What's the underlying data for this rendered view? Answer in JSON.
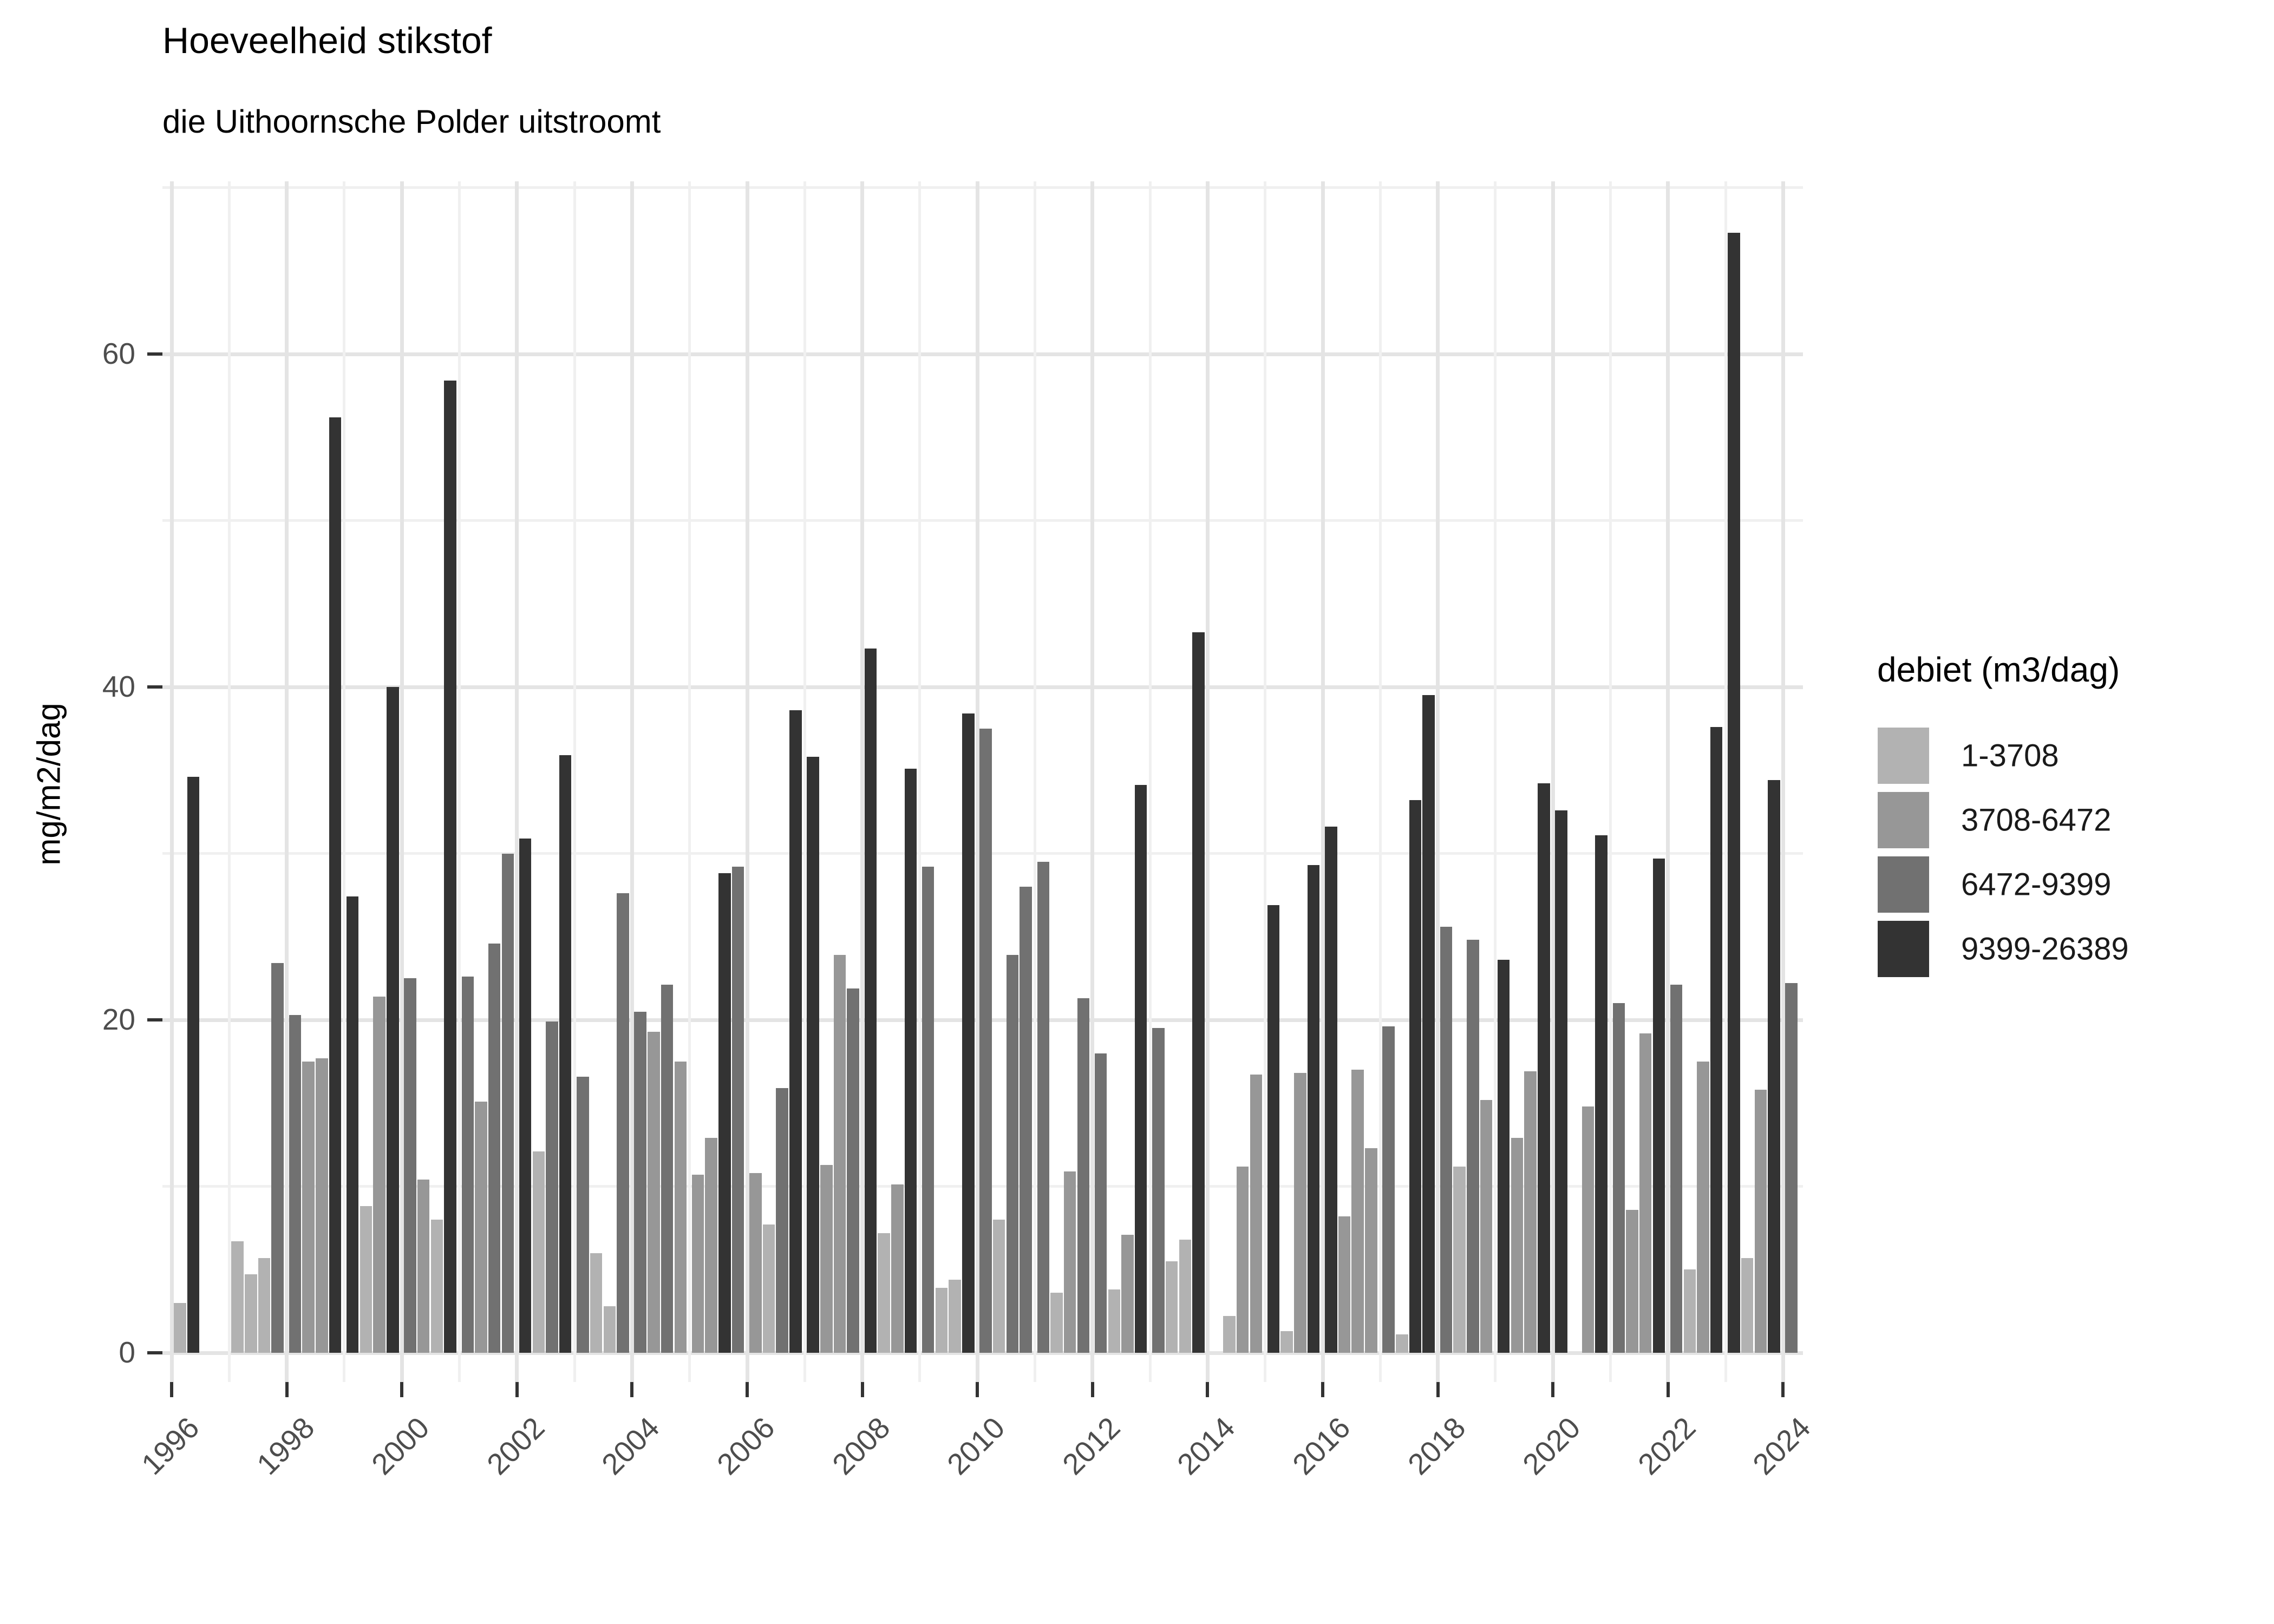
{
  "chart_data": {
    "type": "bar",
    "title": "Hoeveelheid stikstof",
    "subtitle": "die Uithoornsche Polder uitstroomt",
    "ylabel": "mg/m2/dag",
    "xlabel": "",
    "grid": "on",
    "legend_position": "right",
    "legend_title": "debiet (m3/dag)",
    "categories": [
      {
        "label": "1-3708",
        "color": "#b2b2b2"
      },
      {
        "label": "3708-6472",
        "color": "#979797"
      },
      {
        "label": "6472-9399",
        "color": "#717171"
      },
      {
        "label": "9399-26389",
        "color": "#333333"
      }
    ],
    "ylim": [
      -1.8,
      70.4
    ],
    "yticks": [
      0,
      20,
      40,
      60
    ],
    "yticks_minor": [
      10,
      30,
      50,
      70
    ],
    "xticks": [
      1996,
      1998,
      2000,
      2002,
      2004,
      2006,
      2008,
      2010,
      2012,
      2014,
      2016,
      2018,
      2020,
      2022,
      2024
    ],
    "xrange": [
      1996,
      2024
    ],
    "bars": [
      {
        "year": 1996,
        "q": 1,
        "c": 0,
        "v": 3.0
      },
      {
        "year": 1996,
        "q": 2,
        "c": 3,
        "v": 34.6
      },
      {
        "year": 1997,
        "q": 1,
        "c": 0,
        "v": 6.7
      },
      {
        "year": 1997,
        "q": 2,
        "c": 0,
        "v": 4.7
      },
      {
        "year": 1997,
        "q": 3,
        "c": 0,
        "v": 5.7
      },
      {
        "year": 1997,
        "q": 4,
        "c": 2,
        "v": 23.4
      },
      {
        "year": 1998,
        "q": 1,
        "c": 2,
        "v": 20.3
      },
      {
        "year": 1998,
        "q": 2,
        "c": 1,
        "v": 17.5
      },
      {
        "year": 1998,
        "q": 3,
        "c": 1,
        "v": 17.7
      },
      {
        "year": 1998,
        "q": 4,
        "c": 3,
        "v": 56.2
      },
      {
        "year": 1999,
        "q": 1,
        "c": 3,
        "v": 27.4
      },
      {
        "year": 1999,
        "q": 2,
        "c": 0,
        "v": 8.8
      },
      {
        "year": 1999,
        "q": 3,
        "c": 1,
        "v": 21.4
      },
      {
        "year": 1999,
        "q": 4,
        "c": 3,
        "v": 40.0
      },
      {
        "year": 2000,
        "q": 1,
        "c": 2,
        "v": 22.5
      },
      {
        "year": 2000,
        "q": 2,
        "c": 1,
        "v": 10.4
      },
      {
        "year": 2000,
        "q": 3,
        "c": 0,
        "v": 8.0
      },
      {
        "year": 2000,
        "q": 4,
        "c": 3,
        "v": 58.4
      },
      {
        "year": 2001,
        "q": 1,
        "c": 2,
        "v": 22.6
      },
      {
        "year": 2001,
        "q": 2,
        "c": 1,
        "v": 15.1
      },
      {
        "year": 2001,
        "q": 3,
        "c": 2,
        "v": 24.6
      },
      {
        "year": 2001,
        "q": 4,
        "c": 2,
        "v": 30.0
      },
      {
        "year": 2002,
        "q": 1,
        "c": 3,
        "v": 30.9
      },
      {
        "year": 2002,
        "q": 2,
        "c": 0,
        "v": 12.1
      },
      {
        "year": 2002,
        "q": 3,
        "c": 2,
        "v": 19.9
      },
      {
        "year": 2002,
        "q": 4,
        "c": 3,
        "v": 35.9
      },
      {
        "year": 2003,
        "q": 1,
        "c": 2,
        "v": 16.6
      },
      {
        "year": 2003,
        "q": 2,
        "c": 0,
        "v": 6.0
      },
      {
        "year": 2003,
        "q": 3,
        "c": 0,
        "v": 2.8
      },
      {
        "year": 2003,
        "q": 4,
        "c": 2,
        "v": 27.6
      },
      {
        "year": 2004,
        "q": 1,
        "c": 2,
        "v": 20.5
      },
      {
        "year": 2004,
        "q": 2,
        "c": 1,
        "v": 19.3
      },
      {
        "year": 2004,
        "q": 3,
        "c": 2,
        "v": 22.1
      },
      {
        "year": 2004,
        "q": 4,
        "c": 1,
        "v": 17.5
      },
      {
        "year": 2005,
        "q": 1,
        "c": 1,
        "v": 10.7
      },
      {
        "year": 2005,
        "q": 2,
        "c": 1,
        "v": 12.9
      },
      {
        "year": 2005,
        "q": 3,
        "c": 3,
        "v": 28.8
      },
      {
        "year": 2005,
        "q": 4,
        "c": 2,
        "v": 29.2
      },
      {
        "year": 2006,
        "q": 1,
        "c": 1,
        "v": 10.8
      },
      {
        "year": 2006,
        "q": 2,
        "c": 0,
        "v": 7.7
      },
      {
        "year": 2006,
        "q": 3,
        "c": 2,
        "v": 15.9
      },
      {
        "year": 2006,
        "q": 4,
        "c": 3,
        "v": 38.6
      },
      {
        "year": 2007,
        "q": 1,
        "c": 3,
        "v": 35.8
      },
      {
        "year": 2007,
        "q": 2,
        "c": 1,
        "v": 11.3
      },
      {
        "year": 2007,
        "q": 3,
        "c": 1,
        "v": 23.9
      },
      {
        "year": 2007,
        "q": 4,
        "c": 2,
        "v": 21.9
      },
      {
        "year": 2008,
        "q": 1,
        "c": 3,
        "v": 42.3
      },
      {
        "year": 2008,
        "q": 2,
        "c": 0,
        "v": 7.2
      },
      {
        "year": 2008,
        "q": 3,
        "c": 1,
        "v": 10.1
      },
      {
        "year": 2008,
        "q": 4,
        "c": 3,
        "v": 35.1
      },
      {
        "year": 2009,
        "q": 1,
        "c": 2,
        "v": 29.2
      },
      {
        "year": 2009,
        "q": 2,
        "c": 0,
        "v": 3.9
      },
      {
        "year": 2009,
        "q": 3,
        "c": 0,
        "v": 4.4
      },
      {
        "year": 2009,
        "q": 4,
        "c": 3,
        "v": 38.4
      },
      {
        "year": 2010,
        "q": 1,
        "c": 2,
        "v": 37.5
      },
      {
        "year": 2010,
        "q": 2,
        "c": 0,
        "v": 8.0
      },
      {
        "year": 2010,
        "q": 3,
        "c": 2,
        "v": 23.9
      },
      {
        "year": 2010,
        "q": 4,
        "c": 2,
        "v": 28.0
      },
      {
        "year": 2011,
        "q": 1,
        "c": 2,
        "v": 29.5
      },
      {
        "year": 2011,
        "q": 2,
        "c": 0,
        "v": 3.6
      },
      {
        "year": 2011,
        "q": 3,
        "c": 1,
        "v": 10.9
      },
      {
        "year": 2011,
        "q": 4,
        "c": 2,
        "v": 21.3
      },
      {
        "year": 2012,
        "q": 1,
        "c": 2,
        "v": 18.0
      },
      {
        "year": 2012,
        "q": 2,
        "c": 0,
        "v": 3.8
      },
      {
        "year": 2012,
        "q": 3,
        "c": 1,
        "v": 7.1
      },
      {
        "year": 2012,
        "q": 4,
        "c": 3,
        "v": 34.1
      },
      {
        "year": 2013,
        "q": 1,
        "c": 2,
        "v": 19.5
      },
      {
        "year": 2013,
        "q": 2,
        "c": 0,
        "v": 5.5
      },
      {
        "year": 2013,
        "q": 3,
        "c": 0,
        "v": 6.8
      },
      {
        "year": 2013,
        "q": 4,
        "c": 3,
        "v": 43.3
      },
      {
        "year": 2014,
        "q": 2,
        "c": 0,
        "v": 2.2
      },
      {
        "year": 2014,
        "q": 3,
        "c": 1,
        "v": 11.2
      },
      {
        "year": 2014,
        "q": 4,
        "c": 1,
        "v": 16.7
      },
      {
        "year": 2015,
        "q": 1,
        "c": 3,
        "v": 26.9
      },
      {
        "year": 2015,
        "q": 2,
        "c": 0,
        "v": 1.3
      },
      {
        "year": 2015,
        "q": 3,
        "c": 1,
        "v": 16.8
      },
      {
        "year": 2015,
        "q": 4,
        "c": 3,
        "v": 29.3
      },
      {
        "year": 2016,
        "q": 1,
        "c": 3,
        "v": 31.6
      },
      {
        "year": 2016,
        "q": 2,
        "c": 1,
        "v": 8.2
      },
      {
        "year": 2016,
        "q": 3,
        "c": 1,
        "v": 17.0
      },
      {
        "year": 2016,
        "q": 4,
        "c": 1,
        "v": 12.3
      },
      {
        "year": 2017,
        "q": 1,
        "c": 2,
        "v": 19.6
      },
      {
        "year": 2017,
        "q": 2,
        "c": 0,
        "v": 1.1
      },
      {
        "year": 2017,
        "q": 3,
        "c": 3,
        "v": 33.2
      },
      {
        "year": 2017,
        "q": 4,
        "c": 3,
        "v": 39.5
      },
      {
        "year": 2018,
        "q": 1,
        "c": 2,
        "v": 25.6
      },
      {
        "year": 2018,
        "q": 2,
        "c": 0,
        "v": 11.2
      },
      {
        "year": 2018,
        "q": 3,
        "c": 2,
        "v": 24.8
      },
      {
        "year": 2018,
        "q": 4,
        "c": 1,
        "v": 15.2
      },
      {
        "year": 2019,
        "q": 1,
        "c": 3,
        "v": 23.6
      },
      {
        "year": 2019,
        "q": 2,
        "c": 1,
        "v": 12.9
      },
      {
        "year": 2019,
        "q": 3,
        "c": 1,
        "v": 16.9
      },
      {
        "year": 2019,
        "q": 4,
        "c": 3,
        "v": 34.2
      },
      {
        "year": 2020,
        "q": 1,
        "c": 3,
        "v": 32.6
      },
      {
        "year": 2020,
        "q": 3,
        "c": 1,
        "v": 14.8
      },
      {
        "year": 2020,
        "q": 4,
        "c": 3,
        "v": 31.1
      },
      {
        "year": 2021,
        "q": 1,
        "c": 2,
        "v": 21.0
      },
      {
        "year": 2021,
        "q": 2,
        "c": 1,
        "v": 8.6
      },
      {
        "year": 2021,
        "q": 3,
        "c": 1,
        "v": 19.2
      },
      {
        "year": 2021,
        "q": 4,
        "c": 3,
        "v": 29.7
      },
      {
        "year": 2022,
        "q": 1,
        "c": 2,
        "v": 22.1
      },
      {
        "year": 2022,
        "q": 2,
        "c": 0,
        "v": 5.0
      },
      {
        "year": 2022,
        "q": 3,
        "c": 1,
        "v": 17.5
      },
      {
        "year": 2022,
        "q": 4,
        "c": 3,
        "v": 37.6
      },
      {
        "year": 2023,
        "q": 1,
        "c": 3,
        "v": 67.3
      },
      {
        "year": 2023,
        "q": 2,
        "c": 0,
        "v": 5.7
      },
      {
        "year": 2023,
        "q": 3,
        "c": 1,
        "v": 15.8
      },
      {
        "year": 2023,
        "q": 4,
        "c": 3,
        "v": 34.4
      },
      {
        "year": 2024,
        "q": 1,
        "c": 2,
        "v": 22.2
      }
    ]
  }
}
